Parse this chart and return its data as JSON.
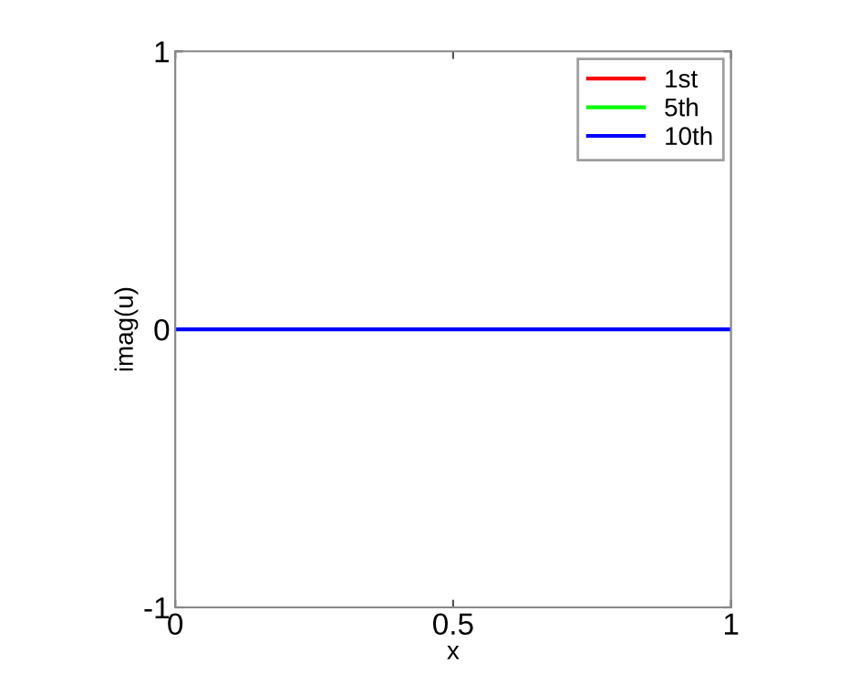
{
  "chart_data": {
    "type": "line",
    "xlabel": "x",
    "ylabel": "imag(u)",
    "x": [
      0,
      1
    ],
    "series": [
      {
        "name": "1st",
        "color": "#ff0000",
        "values": [
          null,
          null
        ]
      },
      {
        "name": "5th",
        "color": "#00ff00",
        "values": [
          null,
          null
        ]
      },
      {
        "name": "10th",
        "color": "#0000ff",
        "values": [
          0,
          0
        ]
      }
    ],
    "xlim": [
      0,
      1
    ],
    "ylim": [
      -1,
      1
    ],
    "xticks": [
      0,
      0.5,
      1
    ],
    "yticks": [
      -1,
      0,
      1
    ],
    "legend": "top right",
    "grid": false,
    "marker": "none",
    "line_style": "solid"
  }
}
